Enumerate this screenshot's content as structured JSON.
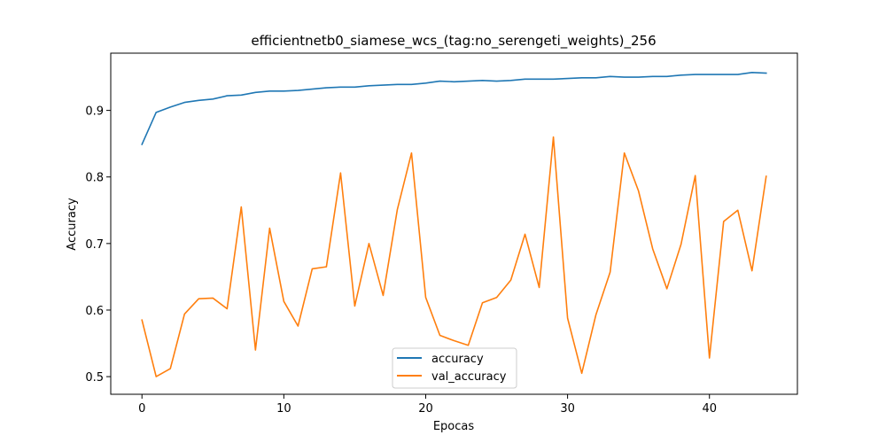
{
  "chart_data": {
    "type": "line",
    "title": "efficientnetb0_siamese_wcs_(tag:no_serengeti_weights)_256",
    "xlabel": "Epocas",
    "ylabel": "Accuracy",
    "xlim": [
      -2.2,
      46.2
    ],
    "ylim": [
      0.4735,
      0.986
    ],
    "xticks": [
      0,
      10,
      20,
      30,
      40
    ],
    "yticks": [
      0.5,
      0.6,
      0.7,
      0.8,
      0.9
    ],
    "ytick_labels": [
      "0.5",
      "0.6",
      "0.7",
      "0.8",
      "0.9"
    ],
    "grid": false,
    "legend_position": "lower-center",
    "x": [
      0,
      1,
      2,
      3,
      4,
      5,
      6,
      7,
      8,
      9,
      10,
      11,
      12,
      13,
      14,
      15,
      16,
      17,
      18,
      19,
      20,
      21,
      22,
      23,
      24,
      25,
      26,
      27,
      28,
      29,
      30,
      31,
      32,
      33,
      34,
      35,
      36,
      37,
      38,
      39,
      40,
      41,
      42,
      43,
      44
    ],
    "series": [
      {
        "name": "accuracy",
        "color": "#1f77b4",
        "values": [
          0.849,
          0.897,
          0.905,
          0.912,
          0.915,
          0.917,
          0.922,
          0.923,
          0.927,
          0.929,
          0.929,
          0.93,
          0.932,
          0.934,
          0.935,
          0.935,
          0.937,
          0.938,
          0.939,
          0.939,
          0.941,
          0.944,
          0.943,
          0.944,
          0.945,
          0.944,
          0.945,
          0.947,
          0.947,
          0.947,
          0.948,
          0.949,
          0.949,
          0.951,
          0.95,
          0.95,
          0.951,
          0.951,
          0.953,
          0.954,
          0.954,
          0.954,
          0.954,
          0.957,
          0.956
        ]
      },
      {
        "name": "val_accuracy",
        "color": "#ff7f0e",
        "values": [
          0.585,
          0.5,
          0.512,
          0.594,
          0.617,
          0.618,
          0.602,
          0.755,
          0.54,
          0.723,
          0.613,
          0.576,
          0.662,
          0.665,
          0.806,
          0.606,
          0.7,
          0.622,
          0.751,
          0.836,
          0.619,
          0.562,
          0.554,
          0.547,
          0.611,
          0.619,
          0.645,
          0.714,
          0.634,
          0.86,
          0.588,
          0.505,
          0.593,
          0.657,
          0.836,
          0.779,
          0.692,
          0.632,
          0.699,
          0.802,
          0.528,
          0.733,
          0.75,
          0.659,
          0.801
        ]
      }
    ]
  }
}
